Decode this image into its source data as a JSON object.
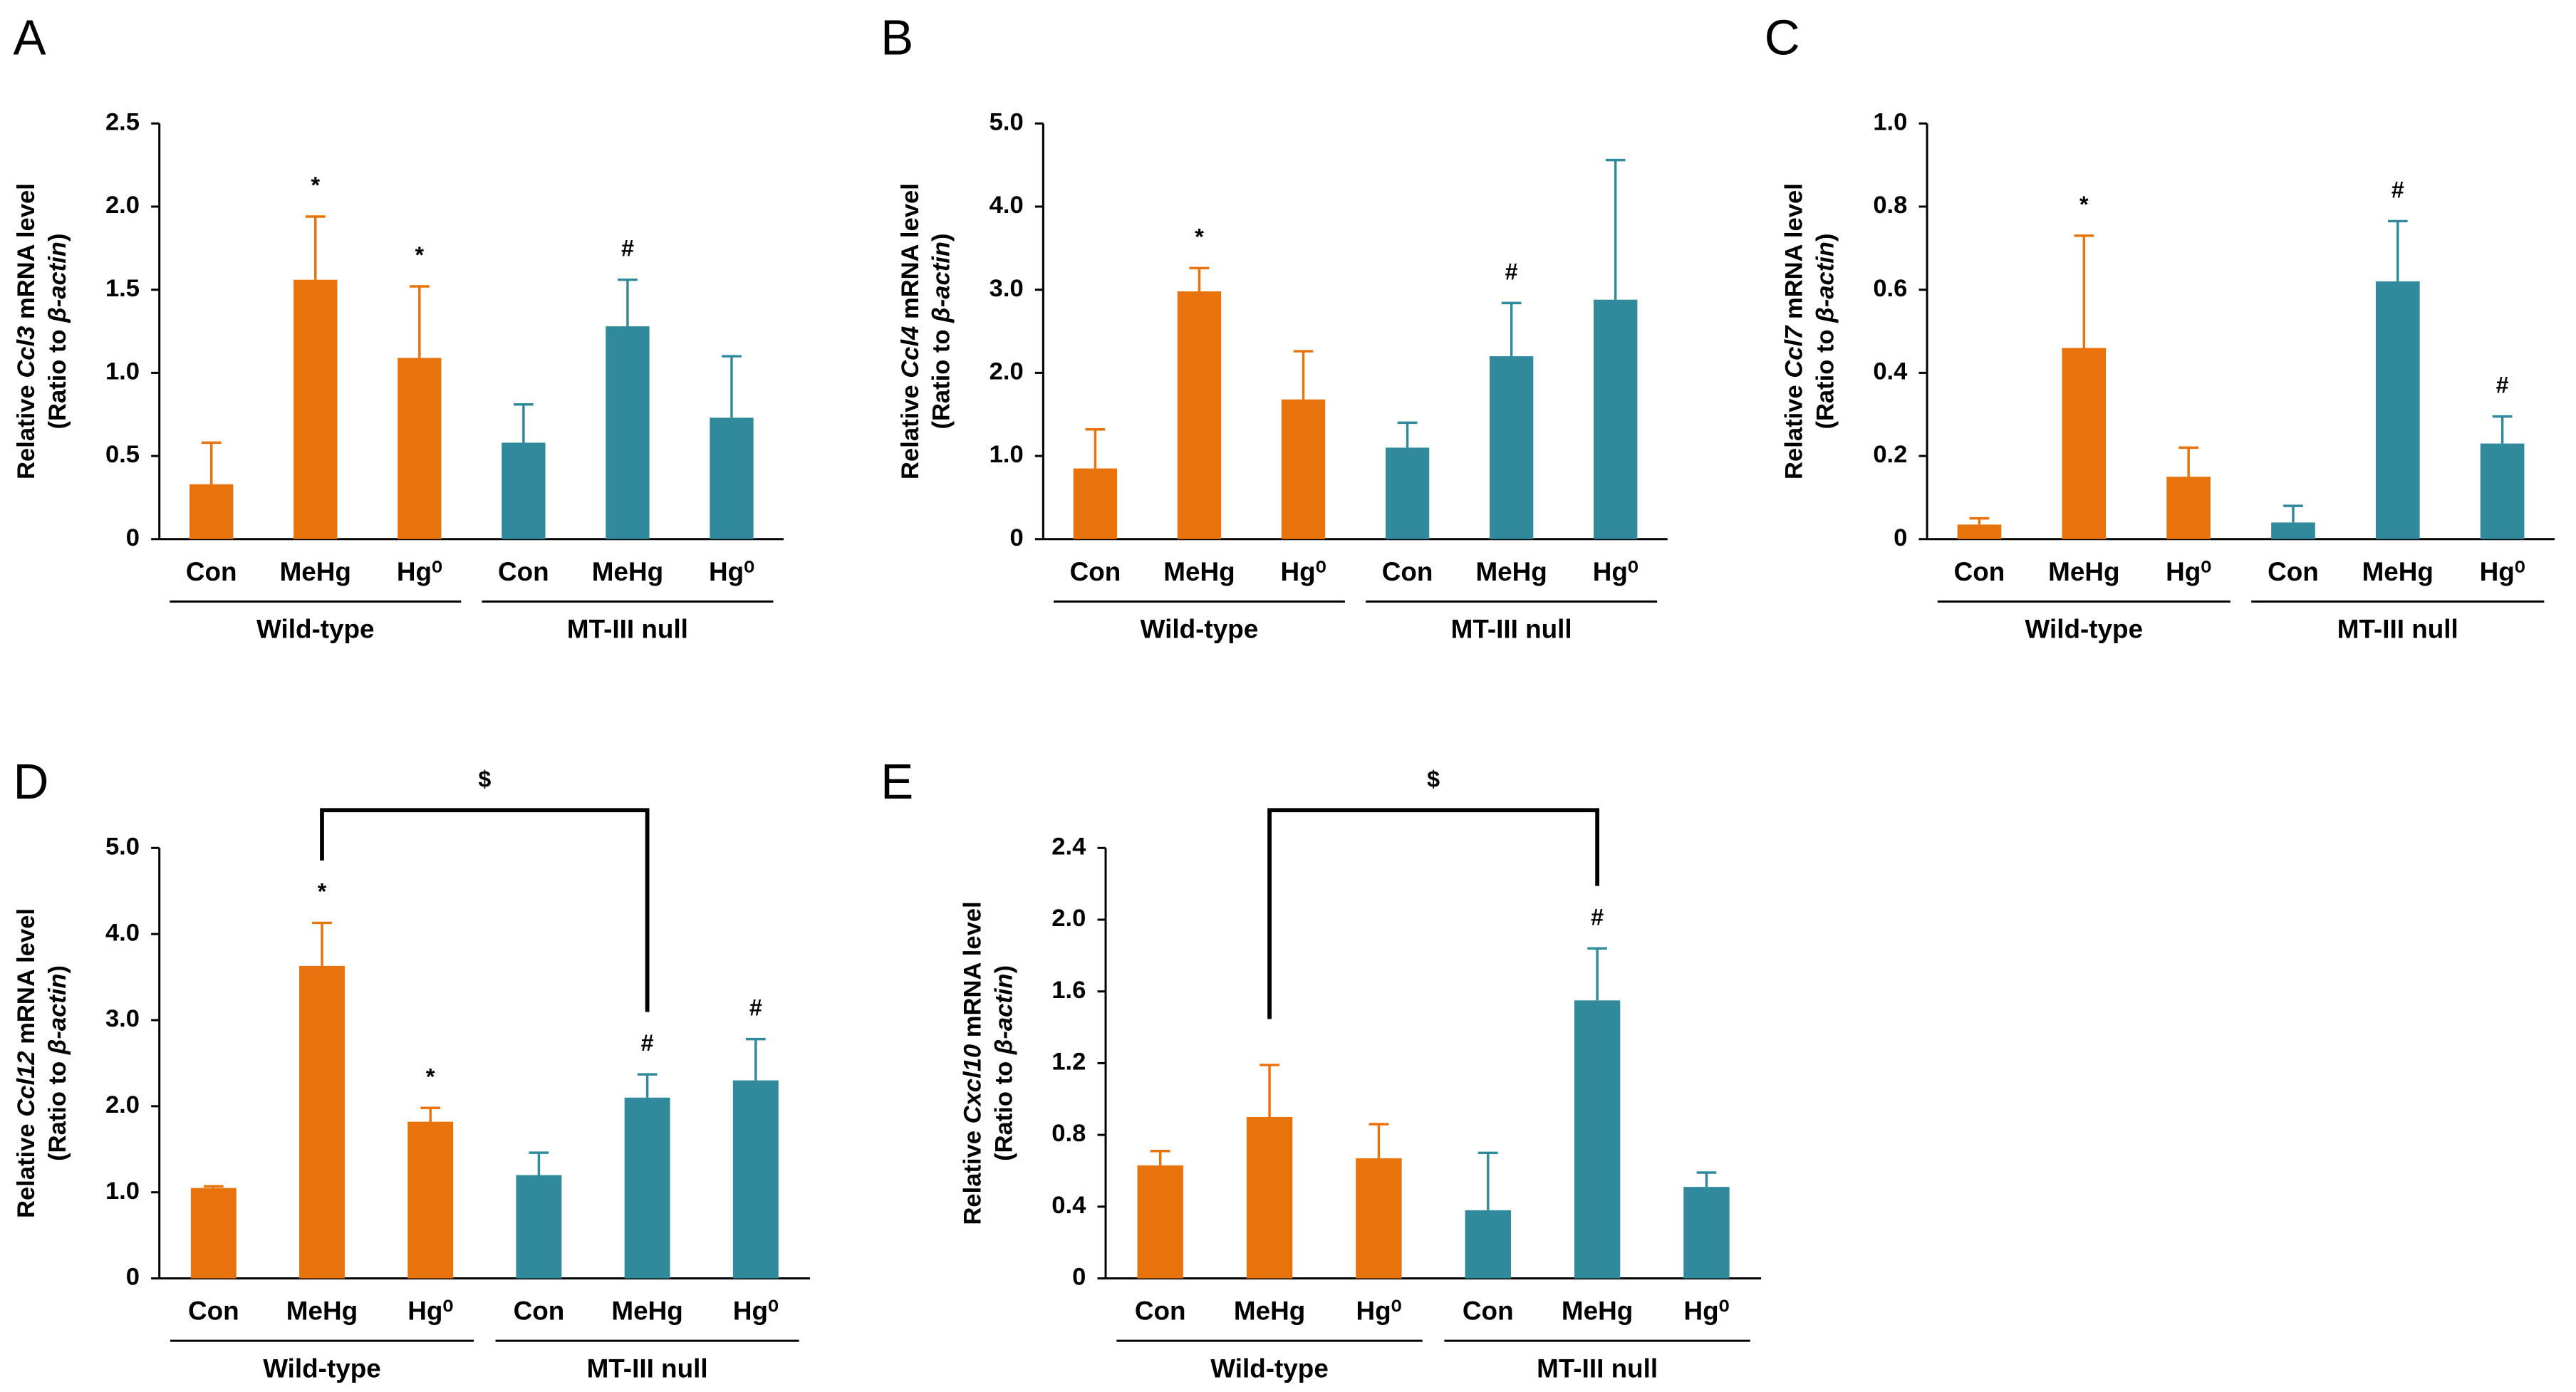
{
  "chart_data": [
    {
      "type": "bar",
      "panel_label": "A",
      "ylabel": [
        "Relative ",
        "Ccl3",
        " mRNA level"
      ],
      "ylabel2": [
        "(Ratio to ",
        "β-actin",
        ")"
      ],
      "categories": [
        "Con",
        "MeHg",
        "Hg⁰"
      ],
      "ylim": [
        0,
        2.5
      ],
      "yticks": [
        0,
        0.5,
        {
          "value": 1,
          "label": "1.0"
        },
        1.5,
        {
          "value": 2,
          "label": "2.0"
        },
        2.5
      ],
      "series": [
        {
          "name": "Wild-type",
          "color": "#e8720c",
          "values": [
            0.33,
            1.56,
            1.09
          ],
          "errors": [
            0.25,
            0.38,
            0.43
          ],
          "annotations": [
            null,
            "*",
            "*"
          ]
        },
        {
          "name": "MT-III null",
          "color": "#318a9c",
          "values": [
            0.58,
            1.28,
            0.73
          ],
          "errors": [
            0.23,
            0.28,
            0.37
          ],
          "annotations": [
            null,
            "#",
            null
          ]
        }
      ]
    },
    {
      "type": "bar",
      "panel_label": "B",
      "ylabel": [
        "Relative ",
        "Ccl4",
        " mRNA level"
      ],
      "ylabel2": [
        "(Ratio to ",
        "β-actin",
        ")"
      ],
      "categories": [
        "Con",
        "MeHg",
        "Hg⁰"
      ],
      "ylim": [
        0,
        5
      ],
      "yticks": [
        0,
        {
          "value": 1,
          "label": "1.0"
        },
        {
          "value": 2,
          "label": "2.0"
        },
        {
          "value": 3,
          "label": "3.0"
        },
        {
          "value": 4,
          "label": "4.0"
        },
        {
          "value": 5,
          "label": "5.0"
        }
      ],
      "series": [
        {
          "name": "Wild-type",
          "color": "#e8720c",
          "values": [
            0.85,
            2.98,
            1.68
          ],
          "errors": [
            0.47,
            0.28,
            0.58
          ],
          "annotations": [
            null,
            "*",
            null
          ]
        },
        {
          "name": "MT-III null",
          "color": "#318a9c",
          "values": [
            1.1,
            2.2,
            2.88
          ],
          "errors": [
            0.3,
            0.64,
            1.68
          ],
          "annotations": [
            null,
            "#",
            null
          ]
        }
      ]
    },
    {
      "type": "bar",
      "panel_label": "C",
      "ylabel": [
        "Relative ",
        "Ccl7",
        " mRNA level"
      ],
      "ylabel2": [
        "(Ratio to ",
        "β-actin",
        ")"
      ],
      "categories": [
        "Con",
        "MeHg",
        "Hg⁰"
      ],
      "ylim": [
        0,
        1
      ],
      "yticks": [
        0,
        0.2,
        0.4,
        0.6,
        0.8,
        {
          "value": 1,
          "label": "1.0"
        }
      ],
      "series": [
        {
          "name": "Wild-type",
          "color": "#e8720c",
          "values": [
            0.035,
            0.46,
            0.15
          ],
          "errors": [
            0.015,
            0.27,
            0.07
          ],
          "annotations": [
            null,
            "*",
            null
          ]
        },
        {
          "name": "MT-III null",
          "color": "#318a9c",
          "values": [
            0.04,
            0.62,
            0.23
          ],
          "errors": [
            0.04,
            0.145,
            0.065
          ],
          "annotations": [
            null,
            "#",
            "#"
          ]
        }
      ]
    },
    {
      "type": "bar",
      "panel_label": "D",
      "ylabel": [
        "Relative ",
        "Ccl12",
        " mRNA level"
      ],
      "ylabel2": [
        "(Ratio to ",
        "β-actin",
        ")"
      ],
      "categories": [
        "Con",
        "MeHg",
        "Hg⁰"
      ],
      "ylim": [
        0,
        5
      ],
      "yticks": [
        0,
        {
          "value": 1,
          "label": "1.0"
        },
        {
          "value": 2,
          "label": "2.0"
        },
        {
          "value": 3,
          "label": "3.0"
        },
        {
          "value": 4,
          "label": "4.0"
        },
        {
          "value": 5,
          "label": "5.0"
        }
      ],
      "series": [
        {
          "name": "Wild-type",
          "color": "#e8720c",
          "values": [
            1.05,
            3.63,
            1.82
          ],
          "errors": [
            0.02,
            0.5,
            0.16
          ],
          "annotations": [
            null,
            "*",
            "*"
          ]
        },
        {
          "name": "MT-III null",
          "color": "#318a9c",
          "values": [
            1.2,
            2.1,
            2.3
          ],
          "errors": [
            0.26,
            0.27,
            0.48
          ],
          "annotations": [
            null,
            "#",
            "#"
          ]
        }
      ],
      "bracket": {
        "from": [
          0,
          1
        ],
        "to": [
          1,
          1
        ],
        "label": "$"
      }
    },
    {
      "type": "bar",
      "panel_label": "E",
      "ylabel": [
        "Relative ",
        "Cxcl10",
        " mRNA level"
      ],
      "ylabel2": [
        "(Ratio to ",
        "β-actin",
        ")"
      ],
      "categories": [
        "Con",
        "MeHg",
        "Hg⁰"
      ],
      "ylim": [
        0,
        2.4
      ],
      "yticks": [
        0,
        0.4,
        0.8,
        1.2,
        1.6,
        {
          "value": 2,
          "label": "2.0"
        },
        2.4
      ],
      "series": [
        {
          "name": "Wild-type",
          "color": "#e8720c",
          "values": [
            0.63,
            0.9,
            0.67
          ],
          "errors": [
            0.08,
            0.29,
            0.19
          ],
          "annotations": [
            null,
            null,
            null
          ]
        },
        {
          "name": "MT-III null",
          "color": "#318a9c",
          "values": [
            0.38,
            1.55,
            0.51
          ],
          "errors": [
            0.32,
            0.29,
            0.08
          ],
          "annotations": [
            null,
            "#",
            null
          ]
        }
      ],
      "bracket": {
        "from": [
          0,
          1
        ],
        "to": [
          1,
          1
        ],
        "label": "$"
      }
    }
  ]
}
